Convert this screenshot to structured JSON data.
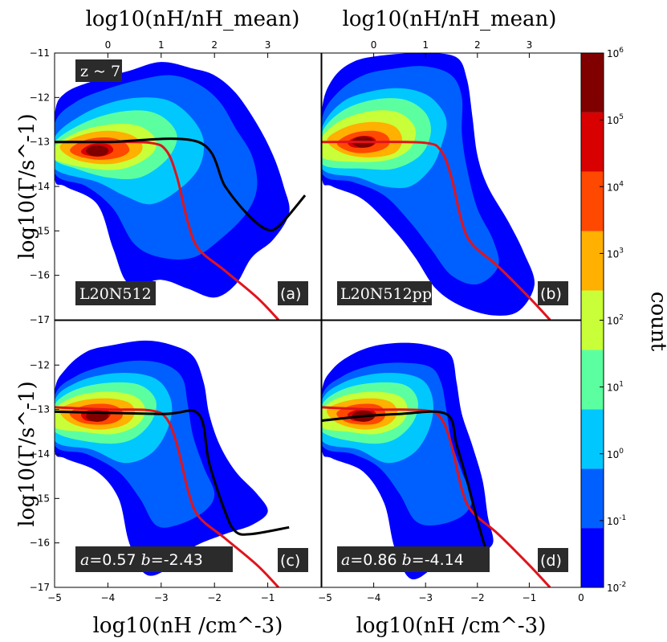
{
  "chart_data": {
    "type": "heatmap",
    "colorbar": {
      "label": "count",
      "ticks": [
        "10^-2",
        "10^-1",
        "10^0",
        "10^1",
        "10^2",
        "10^3",
        "10^4",
        "10^5",
        "10^6"
      ],
      "levels": [
        -2,
        -1,
        0,
        1,
        2,
        3,
        4,
        5,
        6
      ],
      "colors": [
        "#0000ff",
        "#0060ff",
        "#00c8ff",
        "#5cffa0",
        "#c8ff38",
        "#ffb000",
        "#ff4800",
        "#d80000",
        "#800000"
      ]
    },
    "x_axis": {
      "label_bottom": "log10(nH /cm^-3)",
      "label_top": "log10(nH/nH_mean)",
      "range": [
        -5,
        0
      ],
      "ticks_left": [
        "−5",
        "−4",
        "−3",
        "−2",
        "−1"
      ],
      "ticks_right": [
        "−5",
        "−4",
        "−3",
        "−2",
        "−1",
        "0"
      ],
      "top_ticks": [
        "0",
        "1",
        "2",
        "3"
      ],
      "top_ticks_pos": [
        -4.0,
        -3.0,
        -2.0,
        -1.0
      ]
    },
    "y_axis": {
      "label": "log10(Γ/s^-1)",
      "range": [
        -17,
        -11
      ],
      "ticks_top": [
        "−11",
        "−12",
        "−13",
        "−14",
        "−15",
        "−16",
        "−17"
      ],
      "ticks_bottom": [
        "−12",
        "−13",
        "−14",
        "−15",
        "−16",
        "−17"
      ]
    },
    "panels": [
      {
        "id": "a",
        "name": "L20N512",
        "letter": "(a)",
        "redshift": "z ~ 7",
        "peak": [
          -4.2,
          -13.2
        ],
        "red_curve": [
          [
            -5,
            -13.0
          ],
          [
            -4,
            -13.0
          ],
          [
            -3.2,
            -13.02
          ],
          [
            -2.9,
            -13.2
          ],
          [
            -2.7,
            -13.8
          ],
          [
            -2.5,
            -14.8
          ],
          [
            -2.3,
            -15.4
          ],
          [
            -1.8,
            -15.9
          ],
          [
            -1.2,
            -16.5
          ],
          [
            -0.8,
            -17.0
          ]
        ],
        "black_curve": [
          [
            -5,
            -13.0
          ],
          [
            -4,
            -13.0
          ],
          [
            -2.3,
            -13.0
          ],
          [
            -1.8,
            -14.0
          ],
          [
            -1.4,
            -14.6
          ],
          [
            -1.05,
            -14.95
          ],
          [
            -0.8,
            -14.9
          ],
          [
            -0.3,
            -14.2
          ]
        ]
      },
      {
        "id": "b",
        "name": "L20N512pp",
        "letter": "(b)",
        "peak": [
          -4.2,
          -13.0
        ],
        "red_curve": [
          [
            -5,
            -13.0
          ],
          [
            -4,
            -13.0
          ],
          [
            -3.0,
            -13.02
          ],
          [
            -2.7,
            -13.2
          ],
          [
            -2.5,
            -13.8
          ],
          [
            -2.3,
            -14.8
          ],
          [
            -2.1,
            -15.3
          ],
          [
            -1.6,
            -15.8
          ],
          [
            -1.0,
            -16.5
          ],
          [
            -0.6,
            -17.0
          ]
        ],
        "black_curve": []
      },
      {
        "id": "c",
        "name": "",
        "letter": "(c)",
        "a": "0.57",
        "b": "-2.43",
        "peak": [
          -4.2,
          -13.15
        ],
        "red_curve": [
          [
            -5,
            -12.95
          ],
          [
            -4,
            -13.0
          ],
          [
            -3.2,
            -13.02
          ],
          [
            -2.9,
            -13.2
          ],
          [
            -2.7,
            -13.8
          ],
          [
            -2.5,
            -14.8
          ],
          [
            -2.3,
            -15.4
          ],
          [
            -1.8,
            -15.9
          ],
          [
            -1.2,
            -16.5
          ],
          [
            -0.8,
            -17.0
          ]
        ],
        "black_curve": [
          [
            -5,
            -13.05
          ],
          [
            -3,
            -13.1
          ],
          [
            -2.3,
            -13.1
          ],
          [
            -2.1,
            -14.2
          ],
          [
            -1.8,
            -15.3
          ],
          [
            -1.6,
            -15.75
          ],
          [
            -1.3,
            -15.8
          ],
          [
            -0.6,
            -15.65
          ]
        ]
      },
      {
        "id": "d",
        "name": "",
        "letter": "(d)",
        "a": "0.86",
        "b": "-4.14",
        "peak": [
          -4.2,
          -13.15
        ],
        "red_curve": [
          [
            -5,
            -12.95
          ],
          [
            -4,
            -13.0
          ],
          [
            -3.0,
            -13.02
          ],
          [
            -2.7,
            -13.2
          ],
          [
            -2.5,
            -13.8
          ],
          [
            -2.3,
            -14.8
          ],
          [
            -2.1,
            -15.3
          ],
          [
            -1.6,
            -15.8
          ],
          [
            -1.0,
            -16.5
          ],
          [
            -0.6,
            -17.0
          ]
        ],
        "black_curve": [
          [
            -5,
            -13.25
          ],
          [
            -4.2,
            -13.15
          ],
          [
            -3.5,
            -13.1
          ],
          [
            -2.6,
            -13.1
          ],
          [
            -2.4,
            -13.8
          ],
          [
            -2.2,
            -14.6
          ],
          [
            -2.0,
            -15.5
          ],
          [
            -1.85,
            -16.1
          ]
        ]
      }
    ]
  }
}
